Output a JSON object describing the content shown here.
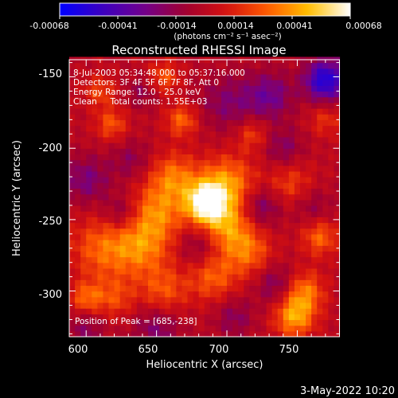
{
  "colors": {
    "background": "#000000",
    "foreground": "#ffffff",
    "colormap": [
      "#0000ff",
      "#3a00c0",
      "#700090",
      "#a00030",
      "#d21010",
      "#ff5a00",
      "#ffc000",
      "#ffffff"
    ]
  },
  "colorbar": {
    "ticks": [
      "-0.00068",
      "-0.00041",
      "-0.00014",
      "0.00014",
      "0.00041",
      "0.00068"
    ],
    "unit_label": "(photons cm⁻² s⁻¹ asec⁻²)"
  },
  "chart_data": {
    "type": "heatmap",
    "title": "Reconstructed RHESSI Image",
    "xlabel": "Heliocentric X (arcsec)",
    "ylabel": "Heliocentric Y (arcsec)",
    "xlim": [
      588,
      780
    ],
    "ylim": [
      -332,
      -138
    ],
    "xticks": [
      "600",
      "650",
      "700",
      "750"
    ],
    "yticks": [
      "-150",
      "-200",
      "-250",
      "-300"
    ],
    "vmin": -0.00068,
    "vmax": 0.00068,
    "annotations": [
      "8-Jul-2003 05:34:48.000 to 05:37:16.000",
      "Detectors: 3F 4F 5F 6F 7F 8F, Att 0",
      "Energy Range: 12.0 - 25.0 keV",
      "Clean     Total counts: 1.55E+03"
    ],
    "peak_label": "Position of Peak = [685,-238]",
    "peak": [
      685,
      -238
    ],
    "sources": [
      {
        "x": 685,
        "y": -238,
        "sigma": 10,
        "amp": 0.00068
      },
      {
        "x": 700,
        "y": -225,
        "sigma": 14,
        "amp": 0.0004
      },
      {
        "x": 662,
        "y": -220,
        "sigma": 12,
        "amp": 0.00032
      },
      {
        "x": 650,
        "y": -245,
        "sigma": 14,
        "amp": 0.00034
      },
      {
        "x": 640,
        "y": -270,
        "sigma": 14,
        "amp": 0.0003
      },
      {
        "x": 700,
        "y": -255,
        "sigma": 12,
        "amp": 0.00034
      },
      {
        "x": 715,
        "y": -272,
        "sigma": 12,
        "amp": 0.0003
      },
      {
        "x": 690,
        "y": -290,
        "sigma": 12,
        "amp": 0.00028
      },
      {
        "x": 655,
        "y": -300,
        "sigma": 12,
        "amp": 0.00026
      },
      {
        "x": 612,
        "y": -270,
        "sigma": 16,
        "amp": 0.0003
      },
      {
        "x": 620,
        "y": -305,
        "sigma": 10,
        "amp": 0.00022
      },
      {
        "x": 600,
        "y": -305,
        "sigma": 8,
        "amp": 0.0003
      },
      {
        "x": 755,
        "y": -300,
        "sigma": 10,
        "amp": 0.00034
      },
      {
        "x": 748,
        "y": -318,
        "sigma": 10,
        "amp": 0.00042
      },
      {
        "x": 766,
        "y": -262,
        "sigma": 9,
        "amp": 0.0003
      },
      {
        "x": 745,
        "y": -225,
        "sigma": 12,
        "amp": 0.00022
      },
      {
        "x": 668,
        "y": -180,
        "sigma": 8,
        "amp": 0.0003
      },
      {
        "x": 655,
        "y": -150,
        "sigma": 8,
        "amp": 0.00026
      },
      {
        "x": 618,
        "y": -183,
        "sigma": 8,
        "amp": 0.00026
      },
      {
        "x": 610,
        "y": -160,
        "sigma": 8,
        "amp": 0.00022
      },
      {
        "x": 718,
        "y": -190,
        "sigma": 8,
        "amp": 0.00022
      },
      {
        "x": 770,
        "y": -180,
        "sigma": 8,
        "amp": 0.00018
      },
      {
        "x": 770,
        "y": -152,
        "sigma": 10,
        "amp": -0.00058
      },
      {
        "x": 730,
        "y": -163,
        "sigma": 12,
        "amp": -0.00028
      },
      {
        "x": 700,
        "y": -168,
        "sigma": 14,
        "amp": -0.0002
      },
      {
        "x": 740,
        "y": -200,
        "sigma": 10,
        "amp": -0.0002
      },
      {
        "x": 600,
        "y": -222,
        "sigma": 12,
        "amp": -0.00024
      },
      {
        "x": 632,
        "y": -208,
        "sigma": 10,
        "amp": -0.00016
      },
      {
        "x": 625,
        "y": -245,
        "sigma": 9,
        "amp": -0.00022
      },
      {
        "x": 725,
        "y": -240,
        "sigma": 10,
        "amp": -0.00026
      },
      {
        "x": 760,
        "y": -240,
        "sigma": 10,
        "amp": -0.00016
      },
      {
        "x": 680,
        "y": -268,
        "sigma": 10,
        "amp": -0.00018
      },
      {
        "x": 735,
        "y": -295,
        "sigma": 10,
        "amp": -0.00022
      },
      {
        "x": 600,
        "y": -325,
        "sigma": 10,
        "amp": -0.00018
      },
      {
        "x": 650,
        "y": -325,
        "sigma": 12,
        "amp": -0.00022
      },
      {
        "x": 705,
        "y": -318,
        "sigma": 10,
        "amp": -0.00018
      },
      {
        "x": 640,
        "y": -160,
        "sigma": 8,
        "amp": -0.00016
      }
    ]
  },
  "footer": {
    "datetime": "3-May-2022 10:20"
  }
}
